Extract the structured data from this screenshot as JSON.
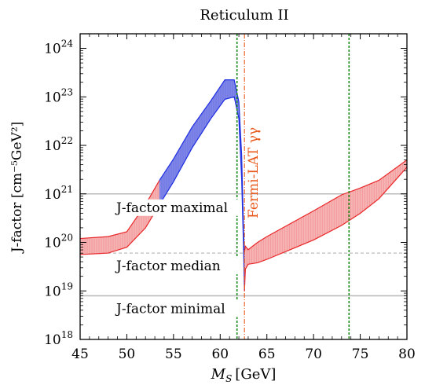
{
  "chart_data": {
    "type": "area",
    "title": "Reticulum II",
    "xlabel_main": "M",
    "xlabel_sub": "S",
    "xlabel_unit": "[GeV]",
    "ylabel": "J-factor [cm⁻⁵GeV²]",
    "xlim": [
      45,
      80
    ],
    "ylim_log10": [
      18,
      24.3
    ],
    "y_scale": "log",
    "xticks": [
      45,
      50,
      55,
      60,
      65,
      70,
      75,
      80
    ],
    "xtick_labels": [
      "45",
      "50",
      "55",
      "60",
      "65",
      "70",
      "75",
      "80"
    ],
    "yticks_exp": [
      18,
      19,
      20,
      21,
      22,
      23,
      24
    ],
    "ytick_base": "10",
    "ytick_exponents": [
      "18",
      "19",
      "20",
      "21",
      "22",
      "23",
      "24"
    ],
    "band": {
      "x": [
        45,
        48,
        50,
        52,
        53.5,
        55,
        57,
        59,
        60.5,
        61.5,
        62.0,
        62.3,
        62.5,
        62.6,
        62.7,
        63,
        64,
        65,
        70,
        73,
        75,
        77,
        80
      ],
      "upper": [
        20.08,
        20.12,
        20.22,
        20.78,
        21.28,
        21.72,
        22.38,
        22.92,
        23.35,
        23.35,
        22.9,
        21.8,
        20.2,
        19.8,
        19.92,
        19.85,
        20.0,
        20.12,
        20.65,
        20.98,
        21.12,
        21.28,
        21.7
      ],
      "lower": [
        19.75,
        19.78,
        19.9,
        20.3,
        20.78,
        21.25,
        21.95,
        22.55,
        22.95,
        23.0,
        22.55,
        21.3,
        19.9,
        19.0,
        19.45,
        19.55,
        19.58,
        19.65,
        20.05,
        20.35,
        20.6,
        20.9,
        21.55
      ]
    },
    "band_colors": {
      "red_fill": "#f6b3b3",
      "red_line": "#e8282a",
      "blue_fill": "#7f86e6",
      "blue_line": "#1f2ee0"
    },
    "blue_x_range": [
      53.5,
      62.6
    ],
    "green_lines_x": [
      61.8,
      73.8
    ],
    "green_color": "#1a8a1a",
    "fermi_line_x": 62.6,
    "fermi_color": "#e8581a",
    "fermi_label": "Fermi-LAT γγ",
    "hlines": [
      {
        "y_exp": 21.0,
        "style": "solid",
        "label": "J-factor maximal"
      },
      {
        "y_exp": 19.78,
        "style": "dashed",
        "label": "J-factor median"
      },
      {
        "y_exp": 18.9,
        "style": "solid",
        "label": "J-factor minimal"
      }
    ],
    "hline_color": "#bcbcbc"
  }
}
